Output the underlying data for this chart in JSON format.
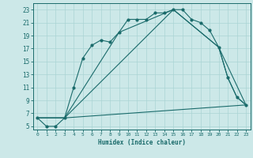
{
  "xlabel": "Humidex (Indice chaleur)",
  "bg_color": "#cce8e8",
  "line_color": "#1a6b6b",
  "grid_color": "#aad4d4",
  "xlim": [
    -0.5,
    23.5
  ],
  "ylim": [
    4.5,
    24.0
  ],
  "xticks": [
    0,
    1,
    2,
    3,
    4,
    5,
    6,
    7,
    8,
    9,
    10,
    11,
    12,
    13,
    14,
    15,
    16,
    17,
    18,
    19,
    20,
    21,
    22,
    23
  ],
  "yticks": [
    5,
    7,
    9,
    11,
    13,
    15,
    17,
    19,
    21,
    23
  ],
  "curve1_x": [
    0,
    1,
    2,
    3,
    4,
    5,
    6,
    7,
    8,
    9,
    10,
    11,
    12,
    13,
    14,
    15,
    16,
    17,
    18,
    19,
    20,
    21,
    22,
    23
  ],
  "curve1_y": [
    6.3,
    5.0,
    5.0,
    6.3,
    11.0,
    15.5,
    17.5,
    18.3,
    18.0,
    19.5,
    21.5,
    21.5,
    21.5,
    22.5,
    22.5,
    23.0,
    23.0,
    21.5,
    21.0,
    19.8,
    17.2,
    12.5,
    9.5,
    8.3
  ],
  "curve2_x": [
    0,
    3,
    9,
    15,
    20,
    21,
    22,
    23
  ],
  "curve2_y": [
    6.3,
    6.3,
    19.5,
    23.0,
    17.2,
    12.5,
    9.5,
    8.3
  ],
  "curve3_x": [
    0,
    3,
    15,
    20,
    23
  ],
  "curve3_y": [
    6.3,
    6.3,
    23.0,
    17.2,
    8.3
  ],
  "curve4_x": [
    0,
    3,
    23
  ],
  "curve4_y": [
    6.3,
    6.3,
    8.3
  ]
}
